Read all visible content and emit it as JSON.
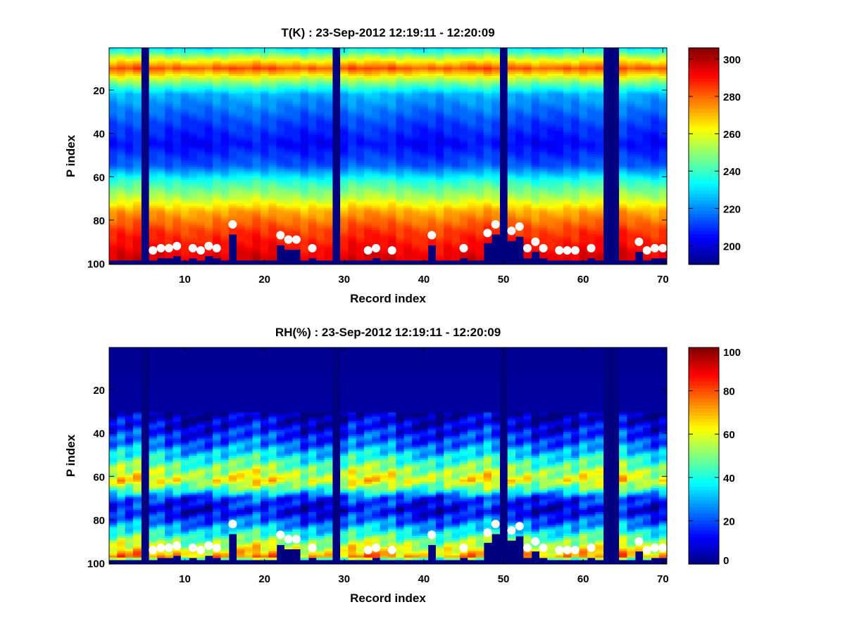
{
  "figure": {
    "panels": [
      {
        "title": "T(K) : 23-Sep-2012 12:19:11 - 12:20:09",
        "xlabel": "Record index",
        "ylabel": "P index",
        "xticks": [
          "10",
          "20",
          "30",
          "40",
          "50",
          "60",
          "70"
        ],
        "yticks": [
          "20",
          "40",
          "60",
          "80",
          "100"
        ],
        "cbar_ticks": [
          "200",
          "220",
          "240",
          "260",
          "280",
          "300"
        ]
      },
      {
        "title": "RH(%) : 23-Sep-2012 12:19:11 - 12:20:09",
        "xlabel": "Record index",
        "ylabel": "P index",
        "xticks": [
          "10",
          "20",
          "30",
          "40",
          "50",
          "60",
          "70"
        ],
        "yticks": [
          "20",
          "40",
          "60",
          "80",
          "100"
        ],
        "cbar_ticks": [
          "0",
          "20",
          "40",
          "60",
          "80",
          "100"
        ]
      }
    ]
  },
  "chart_data": [
    {
      "type": "heatmap",
      "title": "T(K) : 23-Sep-2012 12:19:11 - 12:20:09",
      "xlabel": "Record index",
      "ylabel": "P index",
      "xlim": [
        1,
        70
      ],
      "ylim": [
        1,
        100
      ],
      "y_reversed": true,
      "colormap": "jet",
      "clim": [
        190,
        306
      ],
      "colorbar_ticks": [
        200,
        220,
        240,
        260,
        280,
        300
      ],
      "vertical_profile_approx": [
        {
          "p": 1,
          "value": 232
        },
        {
          "p": 5,
          "value": 255
        },
        {
          "p": 10,
          "value": 282
        },
        {
          "p": 15,
          "value": 255
        },
        {
          "p": 22,
          "value": 225
        },
        {
          "p": 35,
          "value": 212
        },
        {
          "p": 45,
          "value": 205
        },
        {
          "p": 55,
          "value": 215
        },
        {
          "p": 62,
          "value": 238
        },
        {
          "p": 70,
          "value": 255
        },
        {
          "p": 76,
          "value": 272
        },
        {
          "p": 85,
          "value": 285
        },
        {
          "p": 95,
          "value": 293
        },
        {
          "p": 100,
          "value": 297
        }
      ],
      "missing_records": [
        5,
        29,
        50,
        63,
        64
      ],
      "surface_markers": [
        {
          "x": 6,
          "y": 94
        },
        {
          "x": 7,
          "y": 93
        },
        {
          "x": 8,
          "y": 93
        },
        {
          "x": 9,
          "y": 92
        },
        {
          "x": 11,
          "y": 93
        },
        {
          "x": 12,
          "y": 94
        },
        {
          "x": 13,
          "y": 92
        },
        {
          "x": 14,
          "y": 93
        },
        {
          "x": 16,
          "y": 82
        },
        {
          "x": 22,
          "y": 87
        },
        {
          "x": 23,
          "y": 89
        },
        {
          "x": 24,
          "y": 89
        },
        {
          "x": 26,
          "y": 93
        },
        {
          "x": 33,
          "y": 94
        },
        {
          "x": 34,
          "y": 93
        },
        {
          "x": 36,
          "y": 94
        },
        {
          "x": 41,
          "y": 87
        },
        {
          "x": 45,
          "y": 93
        },
        {
          "x": 48,
          "y": 86
        },
        {
          "x": 49,
          "y": 82
        },
        {
          "x": 51,
          "y": 85
        },
        {
          "x": 52,
          "y": 83
        },
        {
          "x": 53,
          "y": 93
        },
        {
          "x": 54,
          "y": 90
        },
        {
          "x": 55,
          "y": 93
        },
        {
          "x": 57,
          "y": 94
        },
        {
          "x": 58,
          "y": 94
        },
        {
          "x": 59,
          "y": 94
        },
        {
          "x": 61,
          "y": 93
        },
        {
          "x": 67,
          "y": 90
        },
        {
          "x": 68,
          "y": 94
        },
        {
          "x": 69,
          "y": 93
        },
        {
          "x": 70,
          "y": 93
        }
      ]
    },
    {
      "type": "heatmap",
      "title": "RH(%) : 23-Sep-2012 12:19:11 - 12:20:09",
      "xlabel": "Record index",
      "ylabel": "P index",
      "xlim": [
        1,
        70
      ],
      "ylim": [
        1,
        100
      ],
      "y_reversed": true,
      "colormap": "jet",
      "clim": [
        0,
        100
      ],
      "colorbar_ticks": [
        0,
        20,
        40,
        60,
        80,
        100
      ],
      "vertical_profile_approx": [
        {
          "p": 1,
          "value": 2
        },
        {
          "p": 30,
          "value": 3
        },
        {
          "p": 38,
          "value": 12
        },
        {
          "p": 45,
          "value": 22
        },
        {
          "p": 52,
          "value": 40
        },
        {
          "p": 58,
          "value": 55
        },
        {
          "p": 62,
          "value": 62
        },
        {
          "p": 66,
          "value": 45
        },
        {
          "p": 70,
          "value": 18
        },
        {
          "p": 76,
          "value": 10
        },
        {
          "p": 82,
          "value": 25
        },
        {
          "p": 88,
          "value": 45
        },
        {
          "p": 93,
          "value": 60
        },
        {
          "p": 97,
          "value": 72
        },
        {
          "p": 100,
          "value": 5
        }
      ],
      "missing_records": [
        5,
        29,
        50,
        63,
        64
      ],
      "surface_markers": [
        {
          "x": 6,
          "y": 94
        },
        {
          "x": 7,
          "y": 93
        },
        {
          "x": 8,
          "y": 93
        },
        {
          "x": 9,
          "y": 92
        },
        {
          "x": 11,
          "y": 93
        },
        {
          "x": 12,
          "y": 94
        },
        {
          "x": 13,
          "y": 92
        },
        {
          "x": 14,
          "y": 93
        },
        {
          "x": 16,
          "y": 82
        },
        {
          "x": 22,
          "y": 87
        },
        {
          "x": 23,
          "y": 89
        },
        {
          "x": 24,
          "y": 89
        },
        {
          "x": 26,
          "y": 93
        },
        {
          "x": 33,
          "y": 94
        },
        {
          "x": 34,
          "y": 93
        },
        {
          "x": 36,
          "y": 94
        },
        {
          "x": 41,
          "y": 87
        },
        {
          "x": 45,
          "y": 93
        },
        {
          "x": 48,
          "y": 86
        },
        {
          "x": 49,
          "y": 82
        },
        {
          "x": 51,
          "y": 85
        },
        {
          "x": 52,
          "y": 83
        },
        {
          "x": 53,
          "y": 93
        },
        {
          "x": 54,
          "y": 90
        },
        {
          "x": 55,
          "y": 93
        },
        {
          "x": 57,
          "y": 94
        },
        {
          "x": 58,
          "y": 94
        },
        {
          "x": 59,
          "y": 94
        },
        {
          "x": 61,
          "y": 93
        },
        {
          "x": 67,
          "y": 90
        },
        {
          "x": 68,
          "y": 94
        },
        {
          "x": 69,
          "y": 93
        },
        {
          "x": 70,
          "y": 93
        }
      ]
    }
  ]
}
